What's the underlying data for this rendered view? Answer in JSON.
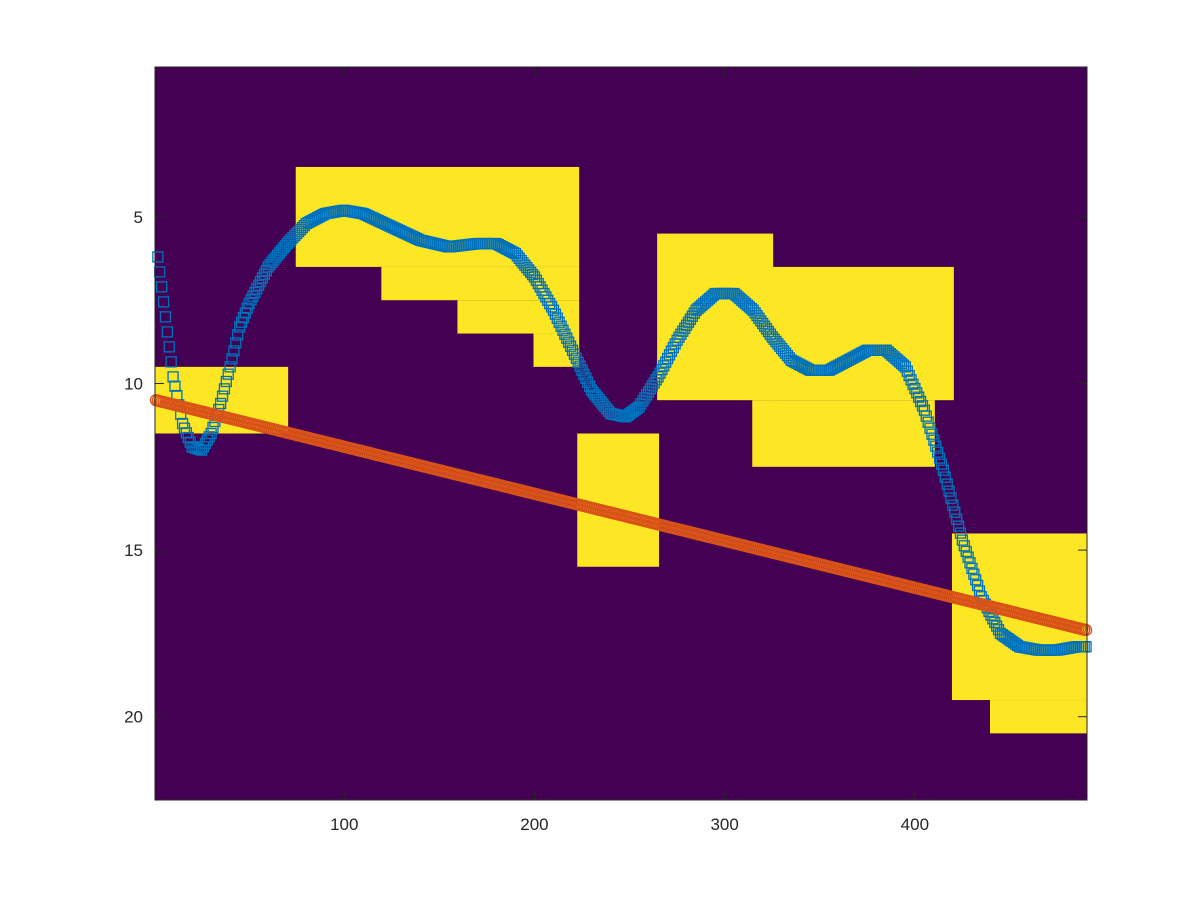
{
  "chart_data": {
    "type": "heatmap",
    "title": "",
    "xlabel": "",
    "ylabel": "",
    "xlim": [
      0.5,
      490.5
    ],
    "ylim": [
      0.5,
      22.5
    ],
    "y_direction": "reversed",
    "grid": false,
    "legend": "none",
    "colors": {
      "background": "#440154",
      "mask": "#fde725",
      "curve": "#0072bd",
      "line": "#d95319",
      "axis": "#262626"
    },
    "xticks": [
      100,
      200,
      300,
      400
    ],
    "yticks": [
      5,
      10,
      15,
      20
    ],
    "mask_blocks": [
      {
        "x": [
          1,
          70
        ],
        "y": [
          9.5,
          11.5
        ]
      },
      {
        "x": [
          75,
          223
        ],
        "y": [
          3.5,
          6.5
        ]
      },
      {
        "x": [
          120,
          223
        ],
        "y": [
          6.5,
          7.5
        ]
      },
      {
        "x": [
          160,
          223
        ],
        "y": [
          7.5,
          8.5
        ]
      },
      {
        "x": [
          200,
          223
        ],
        "y": [
          8.5,
          9.5
        ]
      },
      {
        "x": [
          223,
          265
        ],
        "y": [
          11.5,
          15.5
        ]
      },
      {
        "x": [
          265,
          325
        ],
        "y": [
          5.5,
          10.5
        ]
      },
      {
        "x": [
          325,
          420
        ],
        "y": [
          6.5,
          10.5
        ]
      },
      {
        "x": [
          315,
          410
        ],
        "y": [
          10.5,
          12.5
        ]
      },
      {
        "x": [
          420,
          490
        ],
        "y": [
          14.5,
          19.5
        ]
      },
      {
        "x": [
          440,
          490
        ],
        "y": [
          19.5,
          20.5
        ]
      }
    ],
    "series": [
      {
        "marker": "square",
        "points": [
          {
            "x": 2,
            "y": 6.2
          },
          {
            "x": 6,
            "y": 8.0
          },
          {
            "x": 10,
            "y": 9.8
          },
          {
            "x": 15,
            "y": 11.2
          },
          {
            "x": 20,
            "y": 11.9
          },
          {
            "x": 25,
            "y": 12.0
          },
          {
            "x": 30,
            "y": 11.5
          },
          {
            "x": 35,
            "y": 10.6
          },
          {
            "x": 40,
            "y": 9.5
          },
          {
            "x": 45,
            "y": 8.3
          },
          {
            "x": 50,
            "y": 7.6
          },
          {
            "x": 60,
            "y": 6.5
          },
          {
            "x": 70,
            "y": 5.8
          },
          {
            "x": 80,
            "y": 5.2
          },
          {
            "x": 90,
            "y": 4.9
          },
          {
            "x": 100,
            "y": 4.8
          },
          {
            "x": 110,
            "y": 4.9
          },
          {
            "x": 125,
            "y": 5.3
          },
          {
            "x": 140,
            "y": 5.7
          },
          {
            "x": 155,
            "y": 5.9
          },
          {
            "x": 170,
            "y": 5.8
          },
          {
            "x": 180,
            "y": 5.8
          },
          {
            "x": 190,
            "y": 6.1
          },
          {
            "x": 200,
            "y": 6.8
          },
          {
            "x": 210,
            "y": 7.8
          },
          {
            "x": 220,
            "y": 9.0
          },
          {
            "x": 230,
            "y": 10.2
          },
          {
            "x": 240,
            "y": 10.9
          },
          {
            "x": 248,
            "y": 11.0
          },
          {
            "x": 255,
            "y": 10.7
          },
          {
            "x": 265,
            "y": 9.8
          },
          {
            "x": 275,
            "y": 8.7
          },
          {
            "x": 285,
            "y": 7.8
          },
          {
            "x": 295,
            "y": 7.3
          },
          {
            "x": 305,
            "y": 7.3
          },
          {
            "x": 315,
            "y": 7.8
          },
          {
            "x": 325,
            "y": 8.6
          },
          {
            "x": 335,
            "y": 9.3
          },
          {
            "x": 345,
            "y": 9.6
          },
          {
            "x": 355,
            "y": 9.6
          },
          {
            "x": 365,
            "y": 9.3
          },
          {
            "x": 375,
            "y": 9.0
          },
          {
            "x": 385,
            "y": 9.0
          },
          {
            "x": 395,
            "y": 9.5
          },
          {
            "x": 405,
            "y": 10.8
          },
          {
            "x": 415,
            "y": 12.6
          },
          {
            "x": 425,
            "y": 14.7
          },
          {
            "x": 435,
            "y": 16.4
          },
          {
            "x": 445,
            "y": 17.5
          },
          {
            "x": 455,
            "y": 17.9
          },
          {
            "x": 465,
            "y": 18.0
          },
          {
            "x": 475,
            "y": 18.0
          },
          {
            "x": 485,
            "y": 17.9
          },
          {
            "x": 490,
            "y": 17.9
          }
        ]
      },
      {
        "marker": "circle",
        "points": [
          {
            "x": 1,
            "y": 10.5
          },
          {
            "x": 490,
            "y": 17.4
          }
        ]
      }
    ]
  }
}
